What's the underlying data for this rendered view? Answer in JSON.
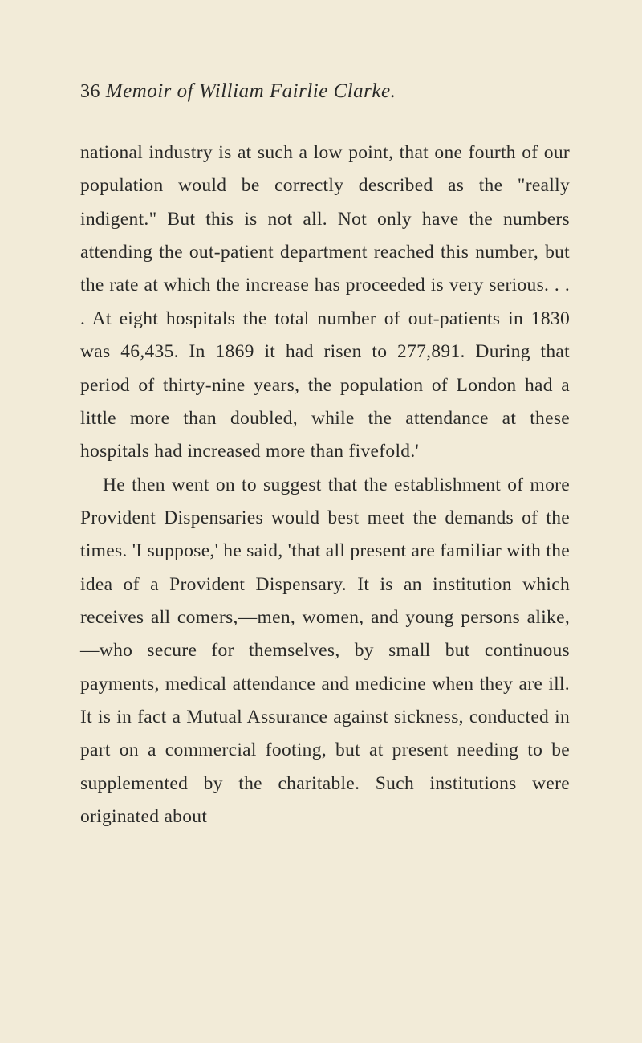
{
  "page": {
    "number": "36",
    "title": "Memoir of William Fairlie Clarke.",
    "background_color": "#f2ebd8",
    "text_color": "#2a2a28",
    "font_family": "Georgia, 'Times New Roman', serif",
    "body_fontsize": 23.5,
    "header_fontsize": 25,
    "line_height": 1.76
  },
  "paragraphs": [
    {
      "text": "national industry is at such a low point, that one fourth of our population would be correctly described as the \"really indigent.\" But this is not all. Not only have the numbers attending the out-patient department reached this number, but the rate at which the increase has proceeded is very serious. . . . At eight hospitals the total number of out-patients in 1830 was 46,435. In 1869 it had risen to 277,891. During that period of thirty-nine years, the population of London had a little more than doubled, while the attendance at these hospitals had increased more than fivefold.'"
    },
    {
      "text": "He then went on to suggest that the establishment of more Provident Dispensaries would best meet the demands of the times. 'I suppose,' he said, 'that all present are familiar with the idea of a Provident Dispensary. It is an institution which receives all comers,—men, women, and young persons alike,—who secure for themselves, by small but continuous payments, medical attendance and medicine when they are ill. It is in fact a Mutual Assurance against sickness, conducted in part on a commercial footing, but at present needing to be supplemented by the charitable. Such institutions were originated about"
    }
  ]
}
